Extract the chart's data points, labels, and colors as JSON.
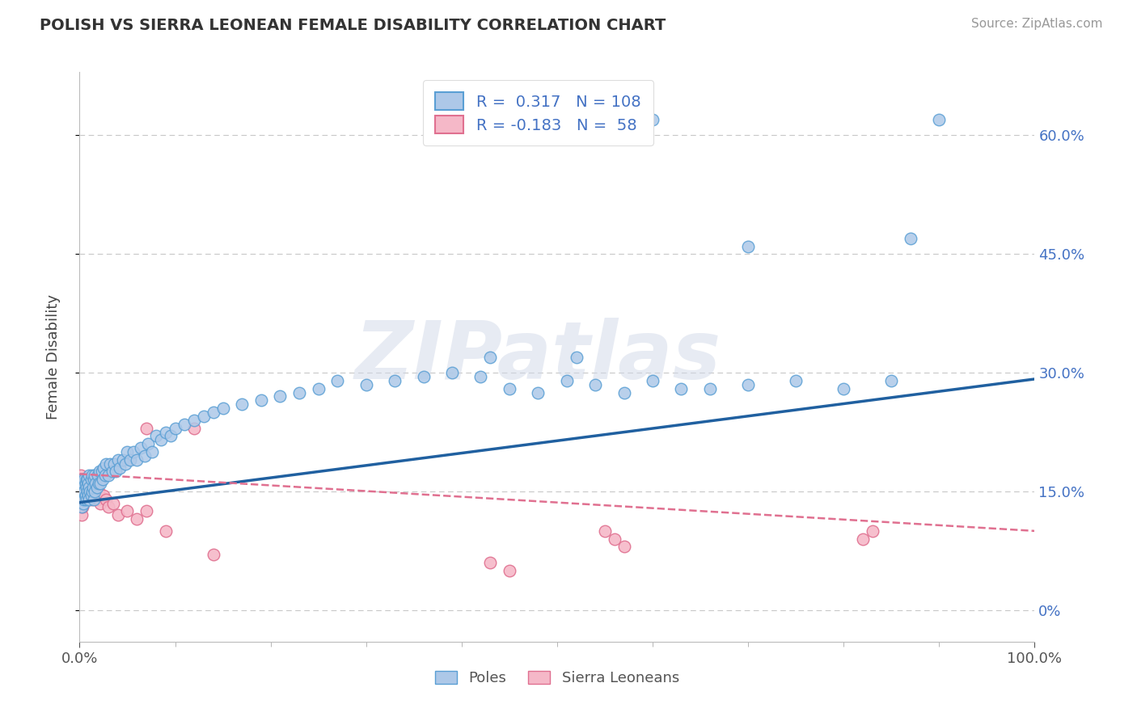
{
  "title": "POLISH VS SIERRA LEONEAN FEMALE DISABILITY CORRELATION CHART",
  "source_text": "Source: ZipAtlas.com",
  "ylabel": "Female Disability",
  "xlim": [
    0.0,
    1.0
  ],
  "ylim": [
    -0.04,
    0.68
  ],
  "ytick_positions": [
    0.0,
    0.15,
    0.3,
    0.45,
    0.6
  ],
  "ytick_labels": [
    "0%",
    "15.0%",
    "30.0%",
    "45.0%",
    "60.0%"
  ],
  "poles_color": "#adc8e8",
  "poles_edge_color": "#5a9fd4",
  "poles_line_color": "#2060a0",
  "sierra_color": "#f5b8c8",
  "sierra_edge_color": "#e07090",
  "sierra_line_color": "#e07090",
  "poles_R": 0.317,
  "poles_N": 108,
  "sierra_R": -0.183,
  "sierra_N": 58,
  "background_color": "#ffffff",
  "grid_color": "#c8c8c8",
  "watermark": "ZIPatlas",
  "legend_label_poles": "Poles",
  "legend_label_sierra": "Sierra Leoneans",
  "poles_x": [
    0.001,
    0.001,
    0.001,
    0.001,
    0.002,
    0.002,
    0.002,
    0.002,
    0.002,
    0.003,
    0.003,
    0.003,
    0.003,
    0.004,
    0.004,
    0.004,
    0.005,
    0.005,
    0.005,
    0.006,
    0.006,
    0.007,
    0.007,
    0.007,
    0.008,
    0.008,
    0.009,
    0.009,
    0.01,
    0.01,
    0.01,
    0.011,
    0.012,
    0.012,
    0.013,
    0.013,
    0.014,
    0.015,
    0.015,
    0.016,
    0.016,
    0.017,
    0.018,
    0.019,
    0.02,
    0.021,
    0.022,
    0.023,
    0.024,
    0.025,
    0.027,
    0.028,
    0.03,
    0.032,
    0.034,
    0.036,
    0.038,
    0.04,
    0.042,
    0.045,
    0.048,
    0.05,
    0.053,
    0.056,
    0.06,
    0.064,
    0.068,
    0.072,
    0.076,
    0.08,
    0.085,
    0.09,
    0.095,
    0.1,
    0.11,
    0.12,
    0.13,
    0.14,
    0.15,
    0.17,
    0.19,
    0.21,
    0.23,
    0.25,
    0.27,
    0.3,
    0.33,
    0.36,
    0.39,
    0.42,
    0.45,
    0.48,
    0.51,
    0.54,
    0.57,
    0.6,
    0.63,
    0.66,
    0.7,
    0.75,
    0.8,
    0.85,
    0.87,
    0.9,
    0.43,
    0.52,
    0.6,
    0.7
  ],
  "poles_y": [
    0.14,
    0.15,
    0.155,
    0.16,
    0.13,
    0.145,
    0.15,
    0.155,
    0.165,
    0.14,
    0.145,
    0.155,
    0.16,
    0.135,
    0.15,
    0.16,
    0.14,
    0.15,
    0.165,
    0.145,
    0.16,
    0.14,
    0.155,
    0.165,
    0.15,
    0.165,
    0.145,
    0.16,
    0.14,
    0.155,
    0.17,
    0.15,
    0.145,
    0.165,
    0.15,
    0.17,
    0.155,
    0.14,
    0.165,
    0.15,
    0.17,
    0.16,
    0.155,
    0.17,
    0.16,
    0.175,
    0.16,
    0.175,
    0.165,
    0.18,
    0.17,
    0.185,
    0.17,
    0.185,
    0.175,
    0.185,
    0.175,
    0.19,
    0.18,
    0.19,
    0.185,
    0.2,
    0.19,
    0.2,
    0.19,
    0.205,
    0.195,
    0.21,
    0.2,
    0.22,
    0.215,
    0.225,
    0.22,
    0.23,
    0.235,
    0.24,
    0.245,
    0.25,
    0.255,
    0.26,
    0.265,
    0.27,
    0.275,
    0.28,
    0.29,
    0.285,
    0.29,
    0.295,
    0.3,
    0.295,
    0.28,
    0.275,
    0.29,
    0.285,
    0.275,
    0.29,
    0.28,
    0.28,
    0.285,
    0.29,
    0.28,
    0.29,
    0.47,
    0.62,
    0.32,
    0.32,
    0.62,
    0.46
  ],
  "sierra_x": [
    0.001,
    0.001,
    0.001,
    0.001,
    0.001,
    0.001,
    0.001,
    0.001,
    0.001,
    0.002,
    0.002,
    0.002,
    0.002,
    0.002,
    0.003,
    0.003,
    0.003,
    0.004,
    0.004,
    0.004,
    0.005,
    0.005,
    0.006,
    0.006,
    0.007,
    0.007,
    0.008,
    0.008,
    0.009,
    0.01,
    0.01,
    0.011,
    0.012,
    0.013,
    0.015,
    0.016,
    0.018,
    0.02,
    0.022,
    0.025,
    0.028,
    0.03,
    0.035,
    0.04,
    0.05,
    0.06,
    0.07,
    0.09,
    0.07,
    0.12,
    0.14,
    0.43,
    0.56,
    0.82,
    0.45,
    0.55,
    0.57,
    0.83
  ],
  "sierra_y": [
    0.13,
    0.135,
    0.14,
    0.145,
    0.15,
    0.155,
    0.16,
    0.165,
    0.17,
    0.12,
    0.135,
    0.145,
    0.155,
    0.165,
    0.13,
    0.145,
    0.16,
    0.135,
    0.15,
    0.165,
    0.14,
    0.16,
    0.145,
    0.165,
    0.14,
    0.16,
    0.145,
    0.165,
    0.15,
    0.14,
    0.165,
    0.155,
    0.15,
    0.14,
    0.155,
    0.145,
    0.14,
    0.15,
    0.135,
    0.145,
    0.14,
    0.13,
    0.135,
    0.12,
    0.125,
    0.115,
    0.125,
    0.1,
    0.23,
    0.23,
    0.07,
    0.06,
    0.09,
    0.09,
    0.05,
    0.1,
    0.08,
    0.1
  ],
  "poles_trend": [
    0.136,
    0.292
  ],
  "sierra_trend": [
    0.172,
    0.1
  ]
}
